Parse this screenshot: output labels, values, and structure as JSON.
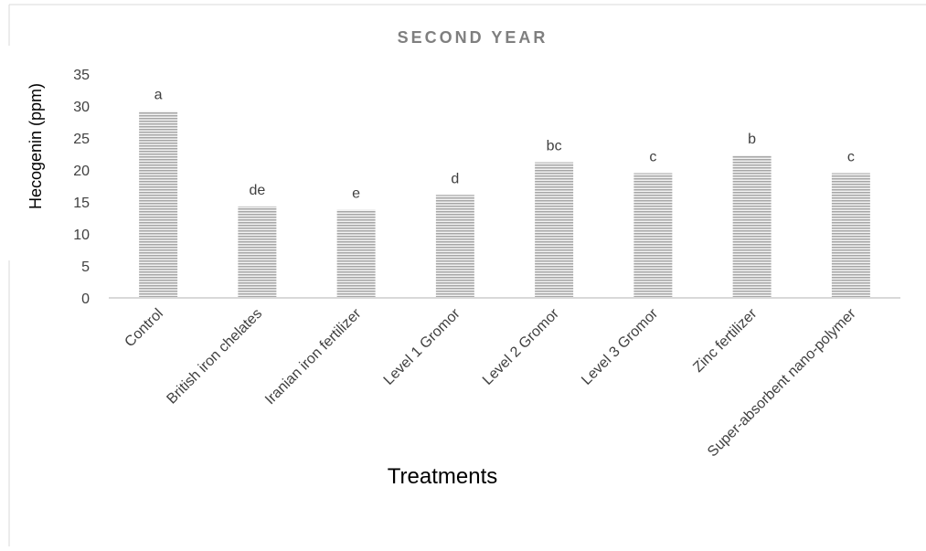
{
  "chart_data": {
    "type": "bar",
    "title": "SECOND YEAR",
    "xlabel": "Treatments",
    "ylabel": "Hecogenin (ppm)",
    "ylim": [
      0,
      35
    ],
    "yticks": [
      0,
      5,
      10,
      15,
      20,
      25,
      30,
      35
    ],
    "grid": false,
    "categories": [
      "Control",
      "British iron chelates",
      "Iranian iron fertilizer",
      "Level 1 Gromor",
      "Level 2 Gromor",
      "Level 3 Gromor",
      "Zinc fertilizer",
      "Super-absorbent nano-polymer"
    ],
    "values": [
      29.2,
      14.3,
      13.8,
      16.1,
      21.2,
      19.5,
      22.3,
      19.5
    ],
    "data_labels": [
      "a",
      "de",
      "e",
      "d",
      "bc",
      "c",
      "b",
      "c"
    ],
    "bar_pattern": "horizontal-stripes",
    "bar_color": "#a6a6a6",
    "axis_color": "#d9d9d9"
  }
}
